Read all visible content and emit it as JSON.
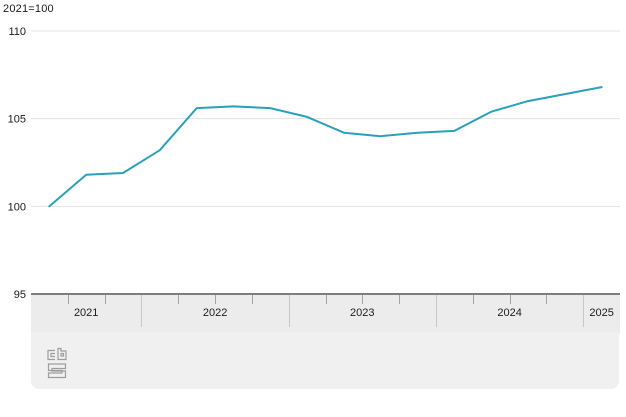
{
  "chart_data": {
    "type": "line",
    "title": "2021=100",
    "x": [
      "2021 Q2",
      "2021 Q3",
      "2021 Q4",
      "2022 Q1",
      "2022 Q2",
      "2022 Q3",
      "2022 Q4",
      "2023 Q1",
      "2023 Q2",
      "2023 Q3",
      "2023 Q4",
      "2024 Q1",
      "2024 Q2",
      "2024 Q3",
      "2024 Q4",
      "2025 Q1"
    ],
    "values": [
      100.0,
      101.8,
      101.9,
      103.2,
      105.6,
      105.7,
      105.6,
      105.1,
      104.2,
      104.0,
      104.2,
      104.3,
      105.4,
      106.0,
      106.4,
      106.8
    ],
    "year_labels": [
      "2021",
      "2022",
      "2023",
      "2024",
      "2025"
    ],
    "quarters_per_year": [
      3,
      4,
      4,
      4,
      1
    ],
    "xlabel": "",
    "ylabel": "",
    "ylim": [
      95,
      110
    ],
    "yticks": [
      95,
      100,
      105,
      110
    ],
    "grid": true,
    "legend_position": "none",
    "line_color": "#2aa0ba",
    "grid_color": "#e3e3e3",
    "label_color": "#1a1a1a"
  },
  "footer": {
    "logo_icon": "cbs-logo"
  }
}
